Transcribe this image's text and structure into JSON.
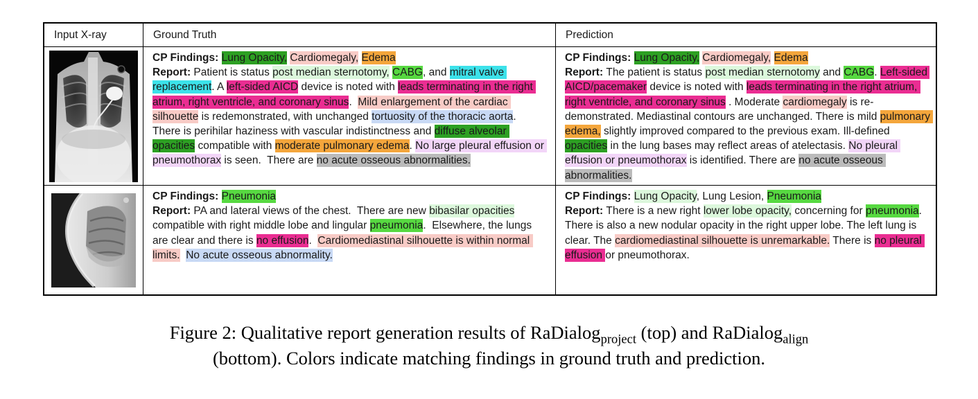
{
  "colors": {
    "darkGreen": "#2da023",
    "brightGreen": "#57d941",
    "paleGreen": "#dcf8dc",
    "lightPink": "#f8cbc6",
    "orange": "#f4a63c",
    "cyan": "#3ce2ea",
    "magenta": "#ea2d92",
    "lightBlue": "#c8d9f5",
    "plum": "#f2d5f8",
    "gray": "#bbbbbb"
  },
  "table": {
    "headers": {
      "col1": "Input X-ray",
      "col2": "Ground Truth",
      "col3": "Prediction"
    },
    "rows": [
      {
        "image_description": "frontal chest x-ray with AICD device",
        "ground_truth": {
          "findings": [
            {
              "t": "CP Findings: ",
              "b": true
            },
            {
              "t": "Lung Opacity,",
              "h": "darkGreen"
            },
            {
              "t": " "
            },
            {
              "t": "Cardiomegaly,",
              "h": "lightPink"
            },
            {
              "t": " "
            },
            {
              "t": "Edema",
              "h": "orange"
            }
          ],
          "report": [
            {
              "t": "Report: ",
              "b": true
            },
            {
              "t": "Patient is status "
            },
            {
              "t": "post median sternotomy,",
              "h": "paleGreen"
            },
            {
              "t": " "
            },
            {
              "t": "CABG",
              "h": "brightGreen"
            },
            {
              "t": ", and "
            },
            {
              "t": "mitral valve replacement",
              "h": "cyan"
            },
            {
              "t": ". A "
            },
            {
              "t": "left-sided AICD",
              "h": "magenta"
            },
            {
              "t": " device is noted with "
            },
            {
              "t": "leads terminating in the right atrium, right ventricle, and coronary sinus",
              "h": "magenta"
            },
            {
              "t": ".  "
            },
            {
              "t": "Mild enlargement of the cardiac silhouette",
              "h": "lightPink"
            },
            {
              "t": " is redemonstrated, with unchanged "
            },
            {
              "t": "tortuosity of the thoracic aorta",
              "h": "lightBlue"
            },
            {
              "t": ".  There is perihilar haziness with vascular indistinctness and "
            },
            {
              "t": "diffuse alveolar opacities",
              "h": "darkGreen"
            },
            {
              "t": " compatible with "
            },
            {
              "t": "moderate pulmonary edema",
              "h": "orange"
            },
            {
              "t": ". "
            },
            {
              "t": "No large pleural effusion or pneumothorax",
              "h": "plum"
            },
            {
              "t": " is seen.  There are "
            },
            {
              "t": "no acute osseous abnormalities.",
              "h": "gray"
            }
          ]
        },
        "prediction": {
          "findings": [
            {
              "t": "CP Findings: ",
              "b": true
            },
            {
              "t": "Lung Opacity,",
              "h": "darkGreen"
            },
            {
              "t": " "
            },
            {
              "t": "Cardiomegaly,",
              "h": "lightPink"
            },
            {
              "t": " "
            },
            {
              "t": "Edema",
              "h": "orange"
            }
          ],
          "report": [
            {
              "t": "Report: ",
              "b": true
            },
            {
              "t": "The patient is status "
            },
            {
              "t": "post median sternotomy",
              "h": "paleGreen"
            },
            {
              "t": " and "
            },
            {
              "t": "CABG",
              "h": "brightGreen"
            },
            {
              "t": ". "
            },
            {
              "t": "Left-sided AICD/pacemaker",
              "h": "magenta"
            },
            {
              "t": " device is noted with "
            },
            {
              "t": "leads terminating in the right atrium, right ventricle, and coronary sinus",
              "h": "magenta"
            },
            {
              "t": " . Moderate "
            },
            {
              "t": "cardiomegaly",
              "h": "lightPink"
            },
            {
              "t": " is re- demonstrated. Mediastinal contours are unchanged. There is mild "
            },
            {
              "t": "pulmonary edema,",
              "h": "orange"
            },
            {
              "t": " slightly improved compared to the previous exam. Ill-defined "
            },
            {
              "t": "opacities",
              "h": "darkGreen"
            },
            {
              "t": " in the lung bases may reflect areas of atelectasis. "
            },
            {
              "t": "No pleural effusion or pneumothorax",
              "h": "plum"
            },
            {
              "t": " is identified. There are "
            },
            {
              "t": "no acute osseous abnormalities.",
              "h": "gray"
            }
          ]
        }
      },
      {
        "image_description": "lateral chest x-ray",
        "ground_truth": {
          "findings": [
            {
              "t": "CP Findings: ",
              "b": true
            },
            {
              "t": "Pneumonia",
              "h": "brightGreen"
            }
          ],
          "report": [
            {
              "t": "Report: ",
              "b": true
            },
            {
              "t": "PA and lateral views of the chest.  There are new "
            },
            {
              "t": "bibasilar opacities",
              "h": "paleGreen"
            },
            {
              "t": " compatible with right middle lobe and lingular "
            },
            {
              "t": "pneumonia",
              "h": "brightGreen"
            },
            {
              "t": ".  Elsewhere, the lungs are clear and there is "
            },
            {
              "t": "no effusion",
              "h": "magenta"
            },
            {
              "t": ".  "
            },
            {
              "t": "Cardiomediastinal silhouette is within normal limits.",
              "h": "lightPink"
            },
            {
              "t": "  "
            },
            {
              "t": "No acute osseous abnormality.",
              "h": "lightBlue"
            }
          ]
        },
        "prediction": {
          "findings": [
            {
              "t": "CP Findings: ",
              "b": true
            },
            {
              "t": "Lung Opacity",
              "h": "paleGreen"
            },
            {
              "t": ", Lung Lesion, "
            },
            {
              "t": "Pneumonia",
              "h": "brightGreen"
            }
          ],
          "report": [
            {
              "t": "Report: ",
              "b": true
            },
            {
              "t": "There is a new right "
            },
            {
              "t": "lower lobe opacity,",
              "h": "paleGreen"
            },
            {
              "t": " concerning for "
            },
            {
              "t": "pneumonia",
              "h": "brightGreen"
            },
            {
              "t": ". There is also a new nodular opacity in the right upper lobe. The left lung is clear. The "
            },
            {
              "t": "cardiomediastinal silhouette is unremarkable.",
              "h": "lightPink"
            },
            {
              "t": " There is "
            },
            {
              "t": "no pleural effusion ",
              "h": "magenta"
            },
            {
              "t": "or pneumothorax."
            }
          ]
        }
      }
    ]
  },
  "caption": {
    "line1": [
      {
        "t": "Figure 2: Qualitative report generation results of RaDialog"
      },
      {
        "t": "project",
        "sub": true
      },
      {
        "t": " (top) and RaDialog"
      },
      {
        "t": "align",
        "sub": true
      }
    ],
    "line2": [
      {
        "t": "(bottom). Colors indicate matching findings in ground truth and prediction."
      }
    ]
  }
}
